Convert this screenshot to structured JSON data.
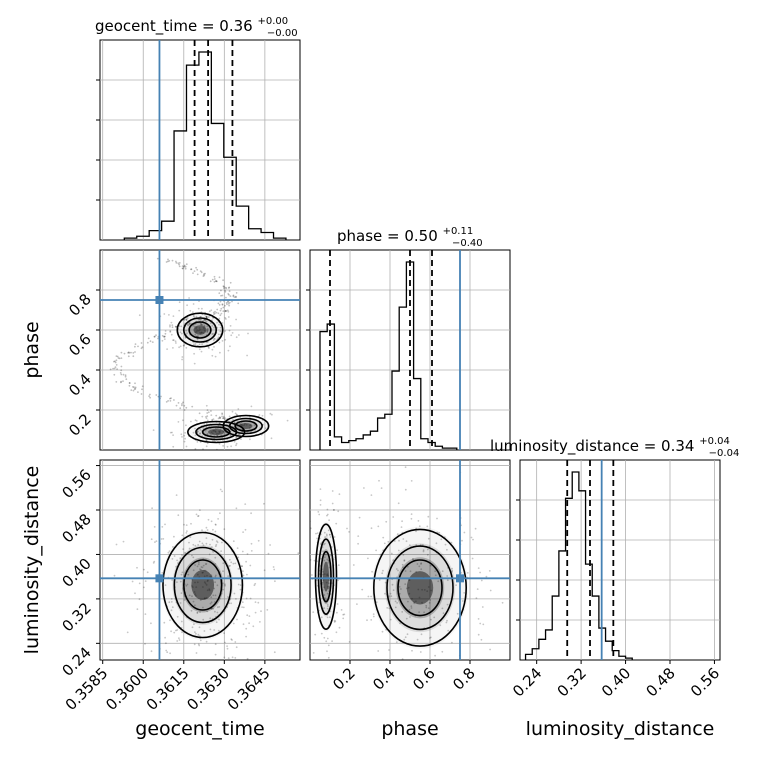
{
  "chart_data": {
    "type": "corner",
    "parameters": [
      "geocent_time",
      "phase",
      "luminosity_distance"
    ],
    "truths": {
      "geocent_time": 0.3606,
      "phase": 0.75,
      "luminosity_distance": 0.357
    },
    "titles": [
      {
        "label": "geocent_time = 0.36",
        "sup": "+0.00",
        "sub": "−0.00"
      },
      {
        "label": "phase = 0.50",
        "sup": "+0.11",
        "sub": "−0.40"
      },
      {
        "label": "luminosity_distance = 0.34",
        "sup": "+0.04",
        "sub": "−0.04"
      }
    ],
    "axes": {
      "geocent_time": {
        "range": [
          0.3584,
          0.3658
        ],
        "ticks": [
          "0.3585",
          "0.3600",
          "0.3615",
          "0.3630",
          "0.3645"
        ],
        "tick_values": [
          0.3585,
          0.36,
          0.3615,
          0.363,
          0.3645
        ]
      },
      "phase": {
        "range": [
          0.0,
          1.0
        ],
        "ticks": [
          "0.2",
          "0.4",
          "0.6",
          "0.8"
        ],
        "tick_values": [
          0.2,
          0.4,
          0.6,
          0.8
        ]
      },
      "luminosity_distance": {
        "range": [
          0.21,
          0.57
        ],
        "ticks": [
          "0.24",
          "0.32",
          "0.40",
          "0.48",
          "0.56"
        ],
        "tick_values": [
          0.24,
          0.32,
          0.4,
          0.48,
          0.56
        ]
      }
    },
    "histograms": {
      "geocent_time": {
        "edges_start": 0.3593,
        "bin_width": 0.00046,
        "counts": [
          0.01,
          0.02,
          0.05,
          0.1,
          0.58,
          0.93,
          1.0,
          0.62,
          0.44,
          0.18,
          0.06,
          0.04,
          0.01
        ],
        "quantiles": [
          0.3619,
          0.3624,
          0.3633
        ]
      },
      "phase": {
        "edges_start": 0.05,
        "bin_width": 0.036,
        "counts": [
          0.63,
          0.67,
          0.07,
          0.04,
          0.05,
          0.06,
          0.08,
          0.1,
          0.17,
          0.19,
          0.42,
          0.76,
          1.0,
          0.38,
          0.06,
          0.04,
          0.02,
          0.01,
          0.01
        ],
        "quantiles": [
          0.1,
          0.5,
          0.61
        ]
      },
      "luminosity_distance": {
        "edges_start": 0.22,
        "bin_width": 0.012,
        "counts": [
          0.03,
          0.06,
          0.11,
          0.16,
          0.34,
          0.58,
          0.86,
          1.0,
          0.9,
          0.51,
          0.34,
          0.17,
          0.1,
          0.05,
          0.02,
          0.01
        ],
        "quantiles": [
          0.295,
          0.336,
          0.378
        ]
      }
    },
    "sample_clusters": {
      "phase_vs_geocent_time": [
        {
          "x": 0.3621,
          "y": 0.6,
          "sx": 0.0004,
          "sy": 0.04,
          "n": 230
        },
        {
          "x": 0.3627,
          "y": 0.09,
          "sx": 0.0005,
          "sy": 0.025,
          "n": 170
        },
        {
          "x": 0.3638,
          "y": 0.12,
          "sx": 0.0004,
          "sy": 0.025,
          "n": 60
        }
      ],
      "luminosity_distance_vs_geocent_time": [
        {
          "x": 0.3622,
          "y": 0.345,
          "sx": 0.0007,
          "sy": 0.045,
          "n": 380
        }
      ],
      "luminosity_distance_vs_phase": [
        {
          "x": 0.08,
          "y": 0.36,
          "sx": 0.025,
          "sy": 0.045,
          "n": 170
        },
        {
          "x": 0.55,
          "y": 0.34,
          "sx": 0.11,
          "sy": 0.05,
          "n": 270
        }
      ]
    },
    "truth_color": "#4682b4",
    "line_color": "#000000",
    "grid": true
  }
}
